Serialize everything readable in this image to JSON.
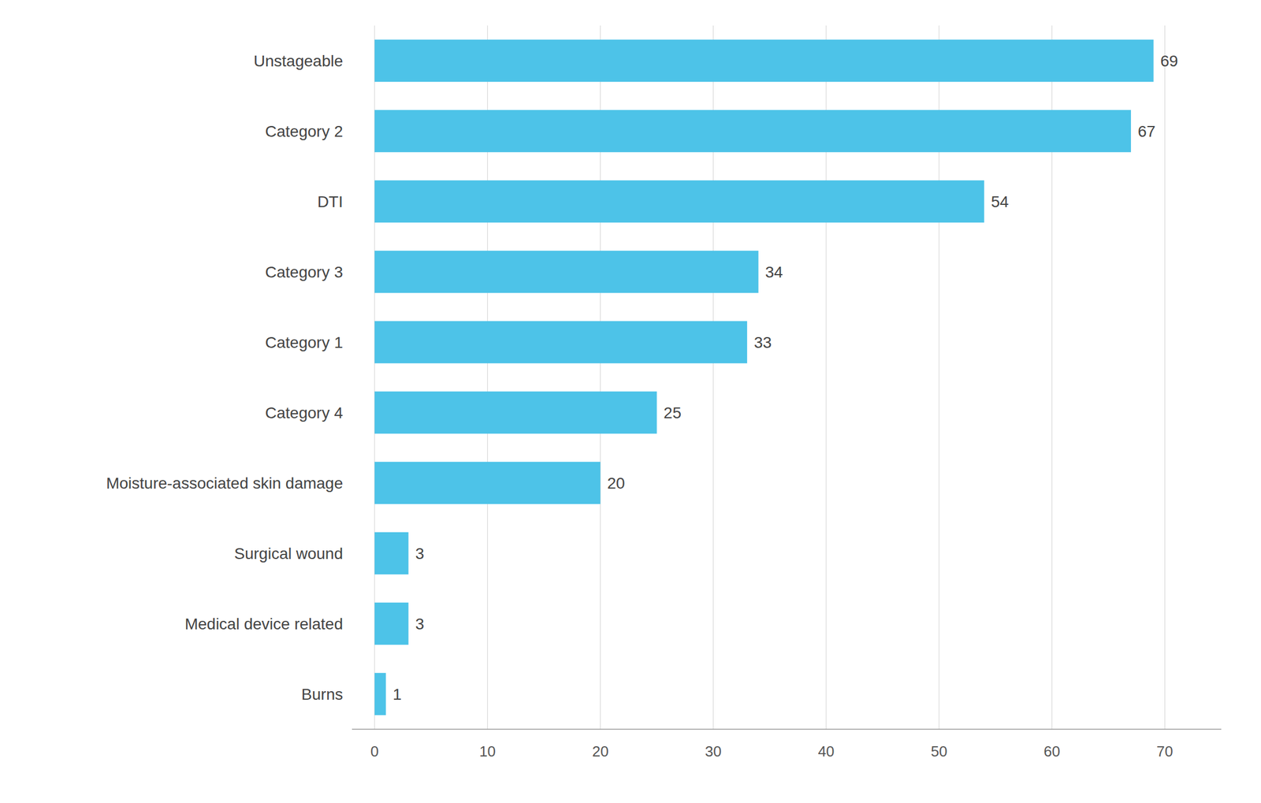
{
  "chart_data": {
    "type": "bar",
    "orientation": "horizontal",
    "categories": [
      "Burns",
      "Medical device related",
      "Surgical wound",
      "Moisture-associated skin damage",
      "Category 4",
      "Category 1",
      "Category 3",
      "DTI",
      "Category 2",
      "Unstageable"
    ],
    "values": [
      1,
      3,
      3,
      20,
      25,
      33,
      34,
      54,
      67,
      69
    ],
    "color": "#4DC3E8",
    "xlim": [
      -2,
      75
    ],
    "xticks": [
      0,
      10,
      20,
      30,
      40,
      50,
      60,
      70
    ],
    "grid": true,
    "data_labels": true
  }
}
